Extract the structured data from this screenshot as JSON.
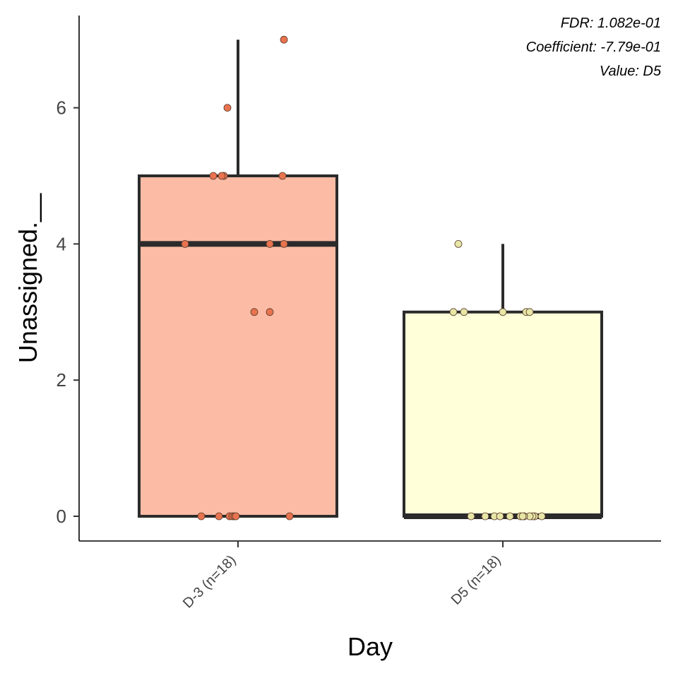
{
  "chart_data": {
    "type": "box",
    "xlabel": "Day",
    "ylabel": "Unassigned.__",
    "ylim": [
      -0.7,
      7.4
    ],
    "yticks": [
      0,
      2,
      4,
      6
    ],
    "grid": false,
    "legend": "none",
    "annotations": [
      "FDR: 1.082e-01",
      "Coefficient: -7.79e-01",
      "Value: D5"
    ],
    "groups": [
      {
        "label": "D-3 (n=18)",
        "fill": "#FBBBA4",
        "point_color": "#E8734F",
        "whisker_low": 0,
        "q1": 0,
        "median": 4,
        "q3": 5,
        "whisker_high": 7,
        "points": [
          7,
          6,
          5,
          5,
          5,
          5,
          4,
          4,
          4,
          3,
          3,
          0,
          0,
          0,
          0,
          0,
          0,
          0
        ]
      },
      {
        "label": "D5 (n=18)",
        "fill": "#FFFFD9",
        "point_color": "#E6E6A6",
        "whisker_low": 0,
        "q1": 0,
        "median": 0,
        "q3": 3,
        "whisker_high": 4,
        "points": [
          4,
          3,
          3,
          3,
          3,
          3,
          0,
          0,
          0,
          0,
          0,
          0,
          0,
          0,
          0,
          0,
          0,
          0
        ]
      }
    ]
  }
}
